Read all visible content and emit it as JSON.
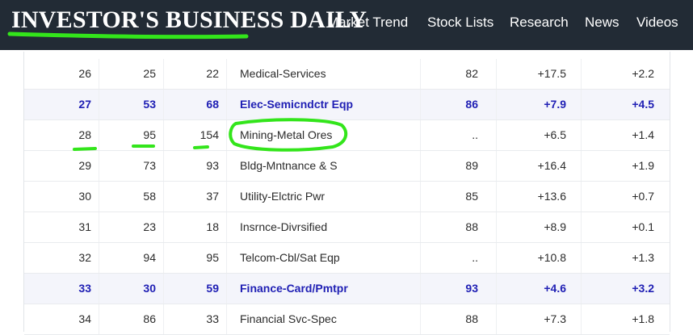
{
  "header": {
    "logo_text": "INVESTOR'S BUSINESS DAILY",
    "nav": [
      "Market Trend",
      "Stock Lists",
      "Research",
      "News",
      "Videos"
    ]
  },
  "colors": {
    "header_bg": "#222b35",
    "highlight_row_text": "#1f1fb4",
    "highlight_row_bg": "#f4f5fb",
    "annotation_green": "#33e51b"
  },
  "table": {
    "rows": [
      {
        "rank": "26",
        "prev": "25",
        "six_wk": "22",
        "name": "Medical-Services",
        "comp": "82",
        "ytd": "+17.5",
        "chg": "+2.2",
        "highlight": false
      },
      {
        "rank": "27",
        "prev": "53",
        "six_wk": "68",
        "name": "Elec-Semicndctr Eqp",
        "comp": "86",
        "ytd": "+7.9",
        "chg": "+4.5",
        "highlight": true
      },
      {
        "rank": "28",
        "prev": "95",
        "six_wk": "154",
        "name": "Mining-Metal Ores",
        "comp": "..",
        "ytd": "+6.5",
        "chg": "+1.4",
        "highlight": false
      },
      {
        "rank": "29",
        "prev": "73",
        "six_wk": "93",
        "name": "Bldg-Mntnance & S",
        "comp": "89",
        "ytd": "+16.4",
        "chg": "+1.9",
        "highlight": false
      },
      {
        "rank": "30",
        "prev": "58",
        "six_wk": "37",
        "name": "Utility-Elctric Pwr",
        "comp": "85",
        "ytd": "+13.6",
        "chg": "+0.7",
        "highlight": false
      },
      {
        "rank": "31",
        "prev": "23",
        "six_wk": "18",
        "name": "Insrnce-Divrsified",
        "comp": "88",
        "ytd": "+8.9",
        "chg": "+0.1",
        "highlight": false
      },
      {
        "rank": "32",
        "prev": "94",
        "six_wk": "95",
        "name": "Telcom-Cbl/Sat Eqp",
        "comp": "..",
        "ytd": "+10.8",
        "chg": "+1.3",
        "highlight": false
      },
      {
        "rank": "33",
        "prev": "30",
        "six_wk": "59",
        "name": "Finance-Card/Pmtpr",
        "comp": "93",
        "ytd": "+4.6",
        "chg": "+3.2",
        "highlight": true
      },
      {
        "rank": "34",
        "prev": "86",
        "six_wk": "33",
        "name": "Financial Svc-Spec",
        "comp": "88",
        "ytd": "+7.3",
        "chg": "+1.8",
        "highlight": false
      }
    ]
  }
}
